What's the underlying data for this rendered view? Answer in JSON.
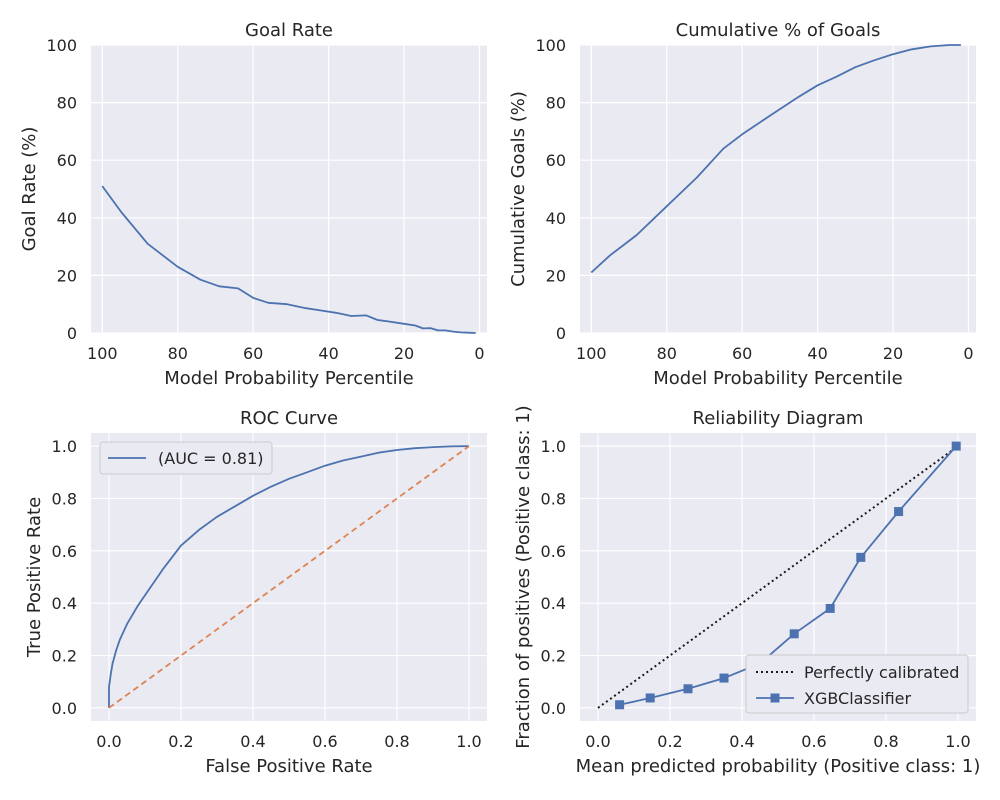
{
  "chart_data": [
    {
      "type": "line",
      "title": "Goal Rate",
      "xlabel": "Model Probability Percentile",
      "ylabel": "Goal Rate (%)",
      "xlim": [
        103,
        -2
      ],
      "ylim": [
        0,
        100
      ],
      "xticks": [
        100,
        80,
        60,
        40,
        20,
        0
      ],
      "yticks": [
        0,
        20,
        40,
        60,
        80,
        100
      ],
      "grid": true,
      "series": [
        {
          "color": "#4c72b0",
          "x": [
            100,
            95,
            88,
            80,
            74,
            69,
            64,
            60,
            56,
            51,
            46,
            42,
            38,
            34,
            30,
            27,
            24,
            20,
            17,
            15,
            13,
            11,
            9,
            7,
            5,
            3,
            1
          ],
          "y": [
            51,
            42,
            31,
            23,
            18.5,
            16.2,
            15.5,
            12.2,
            10.5,
            10,
            8.6,
            7.8,
            7,
            5.9,
            6.1,
            4.5,
            4,
            3.2,
            2.6,
            1.6,
            1.7,
            0.9,
            0.9,
            0.5,
            0.2,
            0.1,
            0
          ]
        }
      ]
    },
    {
      "type": "line",
      "title": "Cumulative % of Goals",
      "xlabel": "Model Probability Percentile",
      "ylabel": "Cumulative Goals (%)",
      "xlim": [
        103,
        -2
      ],
      "ylim": [
        0,
        100
      ],
      "xticks": [
        100,
        80,
        60,
        40,
        20,
        0
      ],
      "yticks": [
        0,
        20,
        40,
        60,
        80,
        100
      ],
      "grid": true,
      "series": [
        {
          "color": "#4c72b0",
          "x": [
            100,
            95,
            88,
            80,
            72,
            65,
            60,
            52,
            45,
            40,
            35,
            30,
            25,
            20,
            15,
            10,
            5,
            2
          ],
          "y": [
            21,
            27,
            34,
            44,
            54,
            64,
            69,
            76,
            82,
            86,
            89,
            92.3,
            94.7,
            96.8,
            98.5,
            99.5,
            100,
            100
          ]
        }
      ]
    },
    {
      "type": "line",
      "title": "ROC Curve",
      "xlabel": "False Positive Rate",
      "ylabel": "True Positive Rate",
      "xlim": [
        -0.05,
        1.05
      ],
      "ylim": [
        -0.05,
        1.05
      ],
      "xticks": [
        0.0,
        0.2,
        0.4,
        0.6,
        0.8,
        1.0
      ],
      "yticks": [
        0.0,
        0.2,
        0.4,
        0.6,
        0.8,
        1.0
      ],
      "xticklabels": [
        "0.0",
        "0.2",
        "0.4",
        "0.6",
        "0.8",
        "1.0"
      ],
      "yticklabels": [
        "0.0",
        "0.2",
        "0.4",
        "0.6",
        "0.8",
        "1.0"
      ],
      "grid": true,
      "legend": {
        "position": "top-left",
        "entries": [
          "(AUC = 0.81)"
        ]
      },
      "series": [
        {
          "name": "(AUC = 0.81)",
          "color": "#4c72b0",
          "style": "solid",
          "x": [
            0,
            0,
            0.005,
            0.01,
            0.02,
            0.03,
            0.05,
            0.08,
            0.1,
            0.15,
            0.2,
            0.25,
            0.3,
            0.35,
            0.4,
            0.45,
            0.5,
            0.55,
            0.6,
            0.65,
            0.7,
            0.75,
            0.8,
            0.85,
            0.9,
            0.95,
            1.0
          ],
          "y": [
            0,
            0.08,
            0.13,
            0.17,
            0.22,
            0.26,
            0.32,
            0.39,
            0.43,
            0.53,
            0.62,
            0.68,
            0.73,
            0.77,
            0.81,
            0.845,
            0.875,
            0.9,
            0.925,
            0.945,
            0.96,
            0.975,
            0.985,
            0.992,
            0.996,
            0.999,
            1.0
          ]
        },
        {
          "color": "#dd8452",
          "style": "dashed",
          "x": [
            0,
            1
          ],
          "y": [
            0,
            1
          ]
        }
      ]
    },
    {
      "type": "line",
      "title": "Reliability Diagram",
      "xlabel": "Mean predicted probability (Positive class: 1)",
      "ylabel": "Fraction of positives (Positive class: 1)",
      "xlim": [
        -0.05,
        1.05
      ],
      "ylim": [
        -0.05,
        1.05
      ],
      "xticks": [
        0.0,
        0.2,
        0.4,
        0.6,
        0.8,
        1.0
      ],
      "yticks": [
        0.0,
        0.2,
        0.4,
        0.6,
        0.8,
        1.0
      ],
      "xticklabels": [
        "0.0",
        "0.2",
        "0.4",
        "0.6",
        "0.8",
        "1.0"
      ],
      "yticklabels": [
        "0.0",
        "0.2",
        "0.4",
        "0.6",
        "0.8",
        "1.0"
      ],
      "grid": true,
      "legend": {
        "position": "bottom-right",
        "entries": [
          "Perfectly calibrated",
          "XGBClassifier"
        ]
      },
      "series": [
        {
          "name": "Perfectly calibrated",
          "color": "#1a1a1a",
          "style": "dotted",
          "x": [
            0,
            1
          ],
          "y": [
            0,
            1
          ]
        },
        {
          "name": "XGBClassifier",
          "color": "#4c72b0",
          "style": "solid",
          "marker": "square",
          "x": [
            0.06,
            0.145,
            0.25,
            0.35,
            0.45,
            0.545,
            0.645,
            0.73,
            0.835,
            0.995
          ],
          "y": [
            0.012,
            0.038,
            0.073,
            0.114,
            0.17,
            0.283,
            0.38,
            0.575,
            0.75,
            1.0
          ]
        }
      ]
    }
  ]
}
